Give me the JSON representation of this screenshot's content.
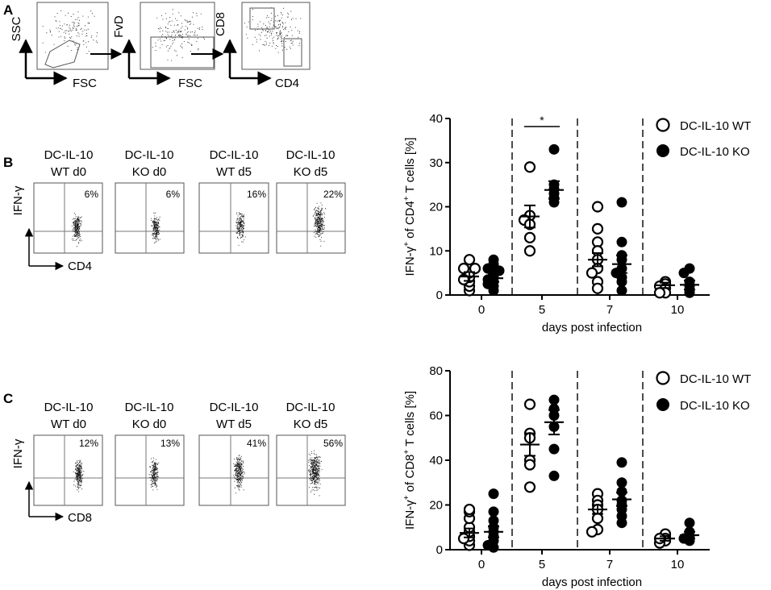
{
  "panel_a": {
    "letter": "A",
    "plots": [
      {
        "y_label": "SSC",
        "x_label": "FSC"
      },
      {
        "y_label": "FvD",
        "x_label": "FSC"
      },
      {
        "y_label": "CD8",
        "x_label": "CD4"
      }
    ]
  },
  "panel_b": {
    "letter": "B",
    "y_marker": "IFN-γ",
    "x_marker": "CD4",
    "plots": [
      {
        "line1": "DC-IL-10",
        "line2": "WT d0",
        "pct": "6%"
      },
      {
        "line1": "DC-IL-10",
        "line2": "KO d0",
        "pct": "6%"
      },
      {
        "line1": "DC-IL-10",
        "line2": "WT d5",
        "pct": "16%"
      },
      {
        "line1": "DC-IL-10",
        "line2": "KO d5",
        "pct": "22%"
      }
    ]
  },
  "panel_c": {
    "letter": "C",
    "y_marker": "IFN-γ",
    "x_marker": "CD8",
    "plots": [
      {
        "line1": "DC-IL-10",
        "line2": "WT d0",
        "pct": "12%"
      },
      {
        "line1": "DC-IL-10",
        "line2": "KO d0",
        "pct": "13%"
      },
      {
        "line1": "DC-IL-10",
        "line2": "WT d5",
        "pct": "41%"
      },
      {
        "line1": "DC-IL-10",
        "line2": "KO d5",
        "pct": "56%"
      }
    ]
  },
  "chart_data": [
    {
      "type": "scatter",
      "title": "",
      "ylabel_prefix": "IFN-γ",
      "ylabel_mid": " of CD4",
      "ylabel_suffix": " T cells [%]",
      "xlabel": "days post infection",
      "categories": [
        "0",
        "5",
        "7",
        "10"
      ],
      "ylim": [
        0,
        40
      ],
      "yticks": [
        0,
        10,
        20,
        30,
        40
      ],
      "legend": [
        "DC-IL-10 WT",
        "DC-IL-10 KO"
      ],
      "significance": [
        {
          "category": "5",
          "label": "*"
        }
      ],
      "series": [
        {
          "name": "DC-IL-10 WT",
          "marker": "open-circle",
          "points": [
            [
              0,
              1
            ],
            [
              0,
              2
            ],
            [
              0,
              3
            ],
            [
              0,
              4
            ],
            [
              0,
              5
            ],
            [
              0,
              6
            ],
            [
              0,
              8
            ],
            [
              0,
              3.5
            ],
            [
              0,
              6
            ],
            [
              1,
              29
            ],
            [
              1,
              18
            ],
            [
              1,
              17
            ],
            [
              1,
              16
            ],
            [
              1,
              13
            ],
            [
              1,
              10
            ],
            [
              2,
              20
            ],
            [
              2,
              15
            ],
            [
              2,
              12
            ],
            [
              2,
              10
            ],
            [
              2,
              8
            ],
            [
              2,
              6
            ],
            [
              2,
              5
            ],
            [
              2,
              3
            ],
            [
              2,
              1.5
            ],
            [
              3,
              3
            ],
            [
              3,
              2.5
            ],
            [
              3,
              2
            ],
            [
              3,
              1.5
            ],
            [
              3,
              0.5
            ],
            [
              3,
              0.5
            ]
          ],
          "means": [
            4.2,
            17.8,
            8,
            2.2
          ],
          "sems": [
            1,
            2.5,
            1.5,
            0.6
          ]
        },
        {
          "name": "DC-IL-10 KO",
          "marker": "filled-circle",
          "points": [
            [
              0,
              1
            ],
            [
              0,
              2
            ],
            [
              0,
              3
            ],
            [
              0,
              4
            ],
            [
              0,
              5
            ],
            [
              0,
              6
            ],
            [
              0,
              8
            ],
            [
              0,
              2.5
            ],
            [
              0,
              3.5
            ],
            [
              0,
              5.5
            ],
            [
              0,
              7
            ],
            [
              1,
              33
            ],
            [
              1,
              25
            ],
            [
              1,
              24
            ],
            [
              1,
              23
            ],
            [
              1,
              22
            ],
            [
              1,
              21
            ],
            [
              2,
              21
            ],
            [
              2,
              12
            ],
            [
              2,
              9
            ],
            [
              2,
              8
            ],
            [
              2,
              6
            ],
            [
              2,
              5
            ],
            [
              2,
              4
            ],
            [
              2,
              3
            ],
            [
              2,
              1
            ],
            [
              3,
              6
            ],
            [
              3,
              5
            ],
            [
              3,
              3
            ],
            [
              3,
              2
            ],
            [
              3,
              1
            ],
            [
              3,
              0.5
            ]
          ],
          "means": [
            3.8,
            23.8,
            7,
            2.3
          ],
          "sems": [
            0.8,
            2,
            2,
            1
          ]
        }
      ]
    },
    {
      "type": "scatter",
      "title": "",
      "ylabel_prefix": "IFN-γ",
      "ylabel_mid": " of CD8",
      "ylabel_suffix": " T cells [%]",
      "xlabel": "days post infection",
      "categories": [
        "0",
        "5",
        "7",
        "10"
      ],
      "ylim": [
        0,
        80
      ],
      "yticks": [
        0,
        20,
        40,
        60,
        80
      ],
      "legend": [
        "DC-IL-10 WT",
        "DC-IL-10 KO"
      ],
      "significance": [],
      "series": [
        {
          "name": "DC-IL-10 WT",
          "marker": "open-circle",
          "points": [
            [
              0,
              2
            ],
            [
              0,
              4
            ],
            [
              0,
              6
            ],
            [
              0,
              8
            ],
            [
              0,
              10
            ],
            [
              0,
              14
            ],
            [
              0,
              17
            ],
            [
              0,
              18
            ],
            [
              0,
              5
            ],
            [
              1,
              65
            ],
            [
              1,
              52
            ],
            [
              1,
              50
            ],
            [
              1,
              40
            ],
            [
              1,
              38
            ],
            [
              1,
              28
            ],
            [
              2,
              25
            ],
            [
              2,
              22
            ],
            [
              2,
              20
            ],
            [
              2,
              18
            ],
            [
              2,
              14
            ],
            [
              2,
              9
            ],
            [
              2,
              8
            ],
            [
              3,
              7
            ],
            [
              3,
              5
            ],
            [
              3,
              4
            ],
            [
              3,
              3
            ],
            [
              3,
              5
            ]
          ],
          "means": [
            7.5,
            47,
            18,
            5
          ],
          "sems": [
            2,
            5,
            2,
            1
          ]
        },
        {
          "name": "DC-IL-10 KO",
          "marker": "filled-circle",
          "points": [
            [
              0,
              1
            ],
            [
              0,
              2
            ],
            [
              0,
              4
            ],
            [
              0,
              6
            ],
            [
              0,
              8
            ],
            [
              0,
              10
            ],
            [
              0,
              13
            ],
            [
              0,
              17
            ],
            [
              0,
              25
            ],
            [
              1,
              67
            ],
            [
              1,
              63
            ],
            [
              1,
              60
            ],
            [
              1,
              55
            ],
            [
              1,
              45
            ],
            [
              1,
              33
            ],
            [
              2,
              39
            ],
            [
              2,
              30
            ],
            [
              2,
              26
            ],
            [
              2,
              22
            ],
            [
              2,
              20
            ],
            [
              2,
              18
            ],
            [
              2,
              15
            ],
            [
              2,
              12
            ],
            [
              3,
              12
            ],
            [
              3,
              8
            ],
            [
              3,
              6
            ],
            [
              3,
              5
            ],
            [
              3,
              4
            ]
          ],
          "means": [
            8,
            57,
            22.5,
            6.5
          ],
          "sems": [
            2.5,
            5.5,
            3,
            1.5
          ]
        }
      ]
    }
  ]
}
